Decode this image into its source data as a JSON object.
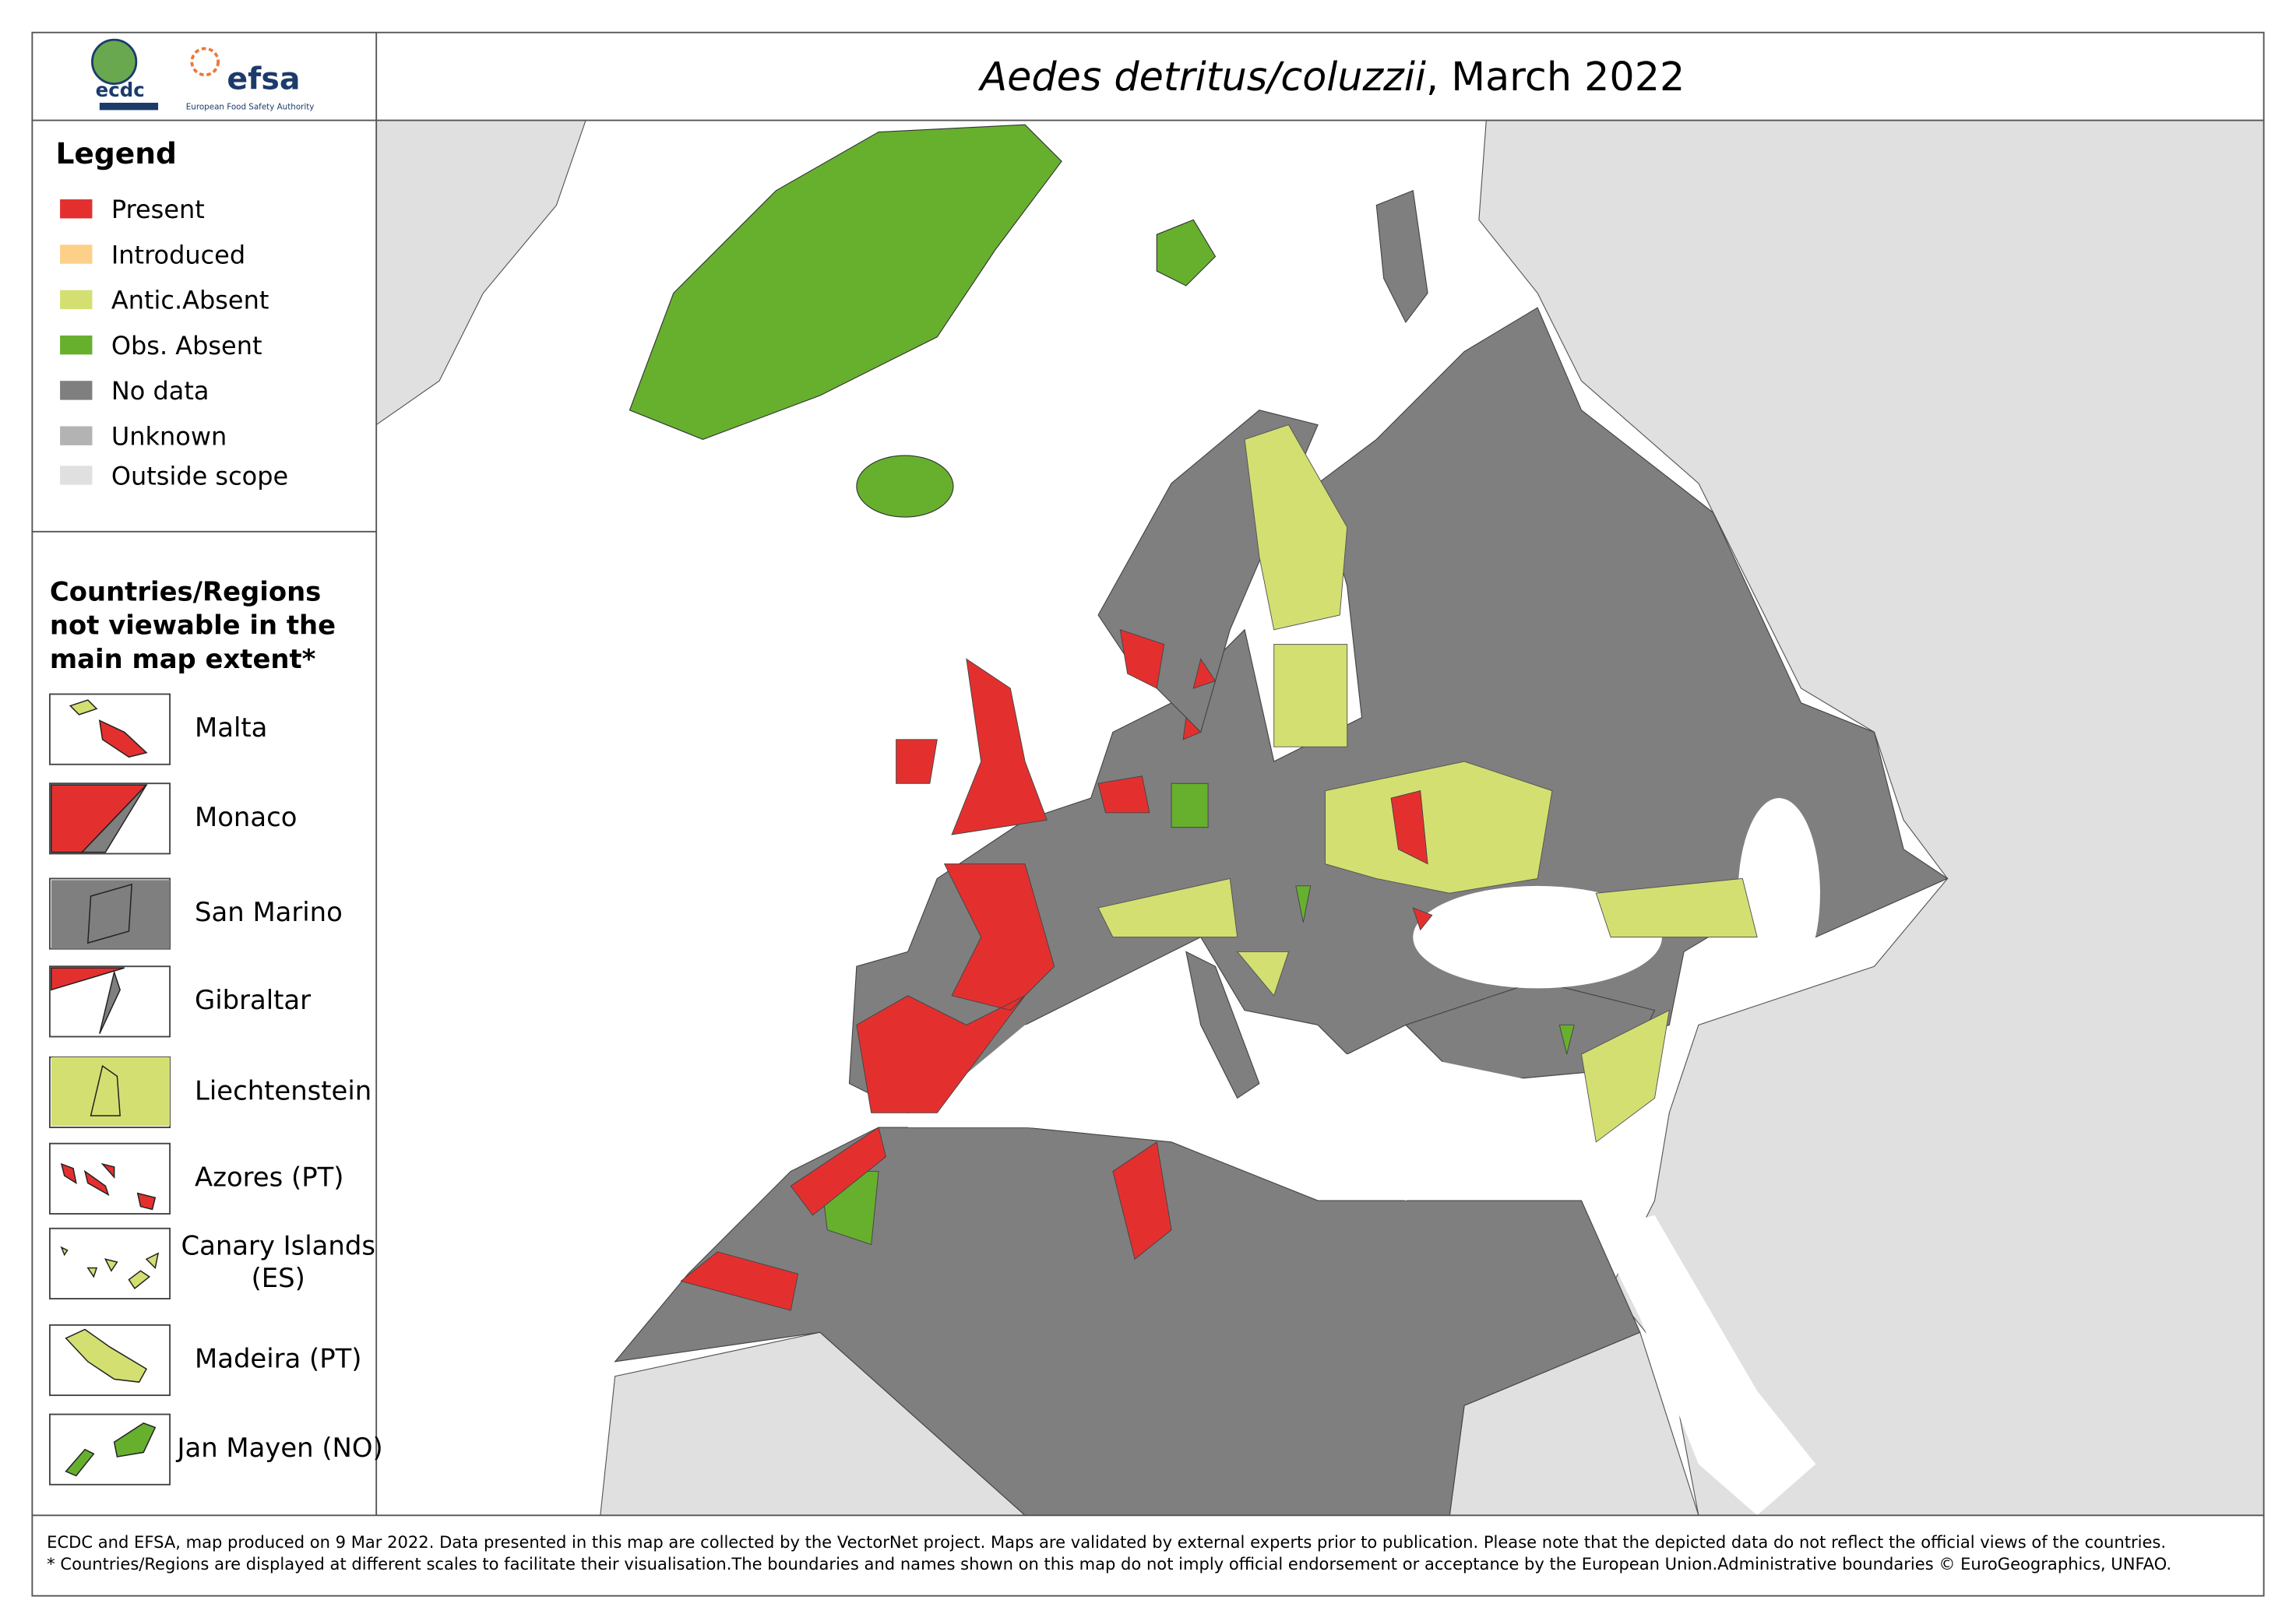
{
  "header": {
    "logo_ecdc": "ecdc",
    "logo_efsa": "efsa",
    "logo_efsa_sub": "European Food Safety Authority",
    "title_species": "Aedes detritus/coluzzii",
    "title_date": ", March 2022"
  },
  "legend": {
    "title": "Legend",
    "items": [
      {
        "label": "Present",
        "color": "#e3302f"
      },
      {
        "label": "Introduced",
        "color": "#fdd08a"
      },
      {
        "label": "Antic.Absent",
        "color": "#d4df72"
      },
      {
        "label": "Obs. Absent",
        "color": "#66b02e"
      },
      {
        "label": "No data",
        "color": "#7f7f7f"
      },
      {
        "label": "Unknown",
        "color": "#b3b3b3"
      },
      {
        "label": "Outside scope",
        "color": "#e0e0e0"
      }
    ]
  },
  "insets": {
    "title_lines": [
      "Countries/Regions",
      "not viewable in the",
      "main map extent*"
    ],
    "items": [
      {
        "lines": [
          "Malta"
        ]
      },
      {
        "lines": [
          "Monaco"
        ]
      },
      {
        "lines": [
          "San Marino"
        ]
      },
      {
        "lines": [
          "Gibraltar"
        ]
      },
      {
        "lines": [
          "Liechtenstein"
        ]
      },
      {
        "lines": [
          "Azores (PT)"
        ]
      },
      {
        "lines": [
          "Canary Islands",
          "(ES)"
        ]
      },
      {
        "lines": [
          "Madeira (PT)"
        ]
      },
      {
        "lines": [
          "Jan Mayen (NO)"
        ]
      }
    ]
  },
  "footer": {
    "lines": [
      "ECDC and EFSA, map produced on 9 Mar 2022. Data presented in this map are collected by the VectorNet project. Maps are validated by external experts prior to publication. Please note that the depicted data do not reflect the official views of the countries.",
      "* Countries/Regions are displayed at different scales to facilitate their visualisation.The boundaries and names shown on this map do not imply official endorsement or acceptance by the European Union.Administrative boundaries © EuroGeographics, UNFAO."
    ]
  }
}
